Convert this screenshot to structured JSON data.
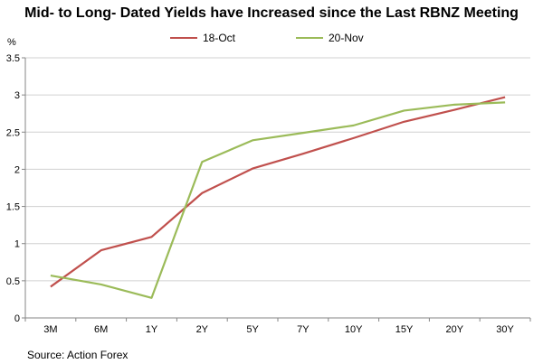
{
  "colors": {
    "oct": "#c0504d",
    "nov": "#9bbb59",
    "axis": "#868686",
    "grid": "#d0d0d0"
  },
  "chart_data": {
    "type": "line",
    "title": "Mid- to Long- Dated Yields have Increased since the Last RBNZ Meeting",
    "ylabel": "%",
    "xlabel": "",
    "categories": [
      "3M",
      "6M",
      "1Y",
      "2Y",
      "5Y",
      "7Y",
      "10Y",
      "15Y",
      "20Y",
      "30Y"
    ],
    "ylim": [
      0,
      3.5
    ],
    "yticks": [
      "0",
      "0.5",
      "1",
      "1.5",
      "2",
      "2.5",
      "3",
      "3.5"
    ],
    "legend_position": "top",
    "series": [
      {
        "name": "18-Oct",
        "color_key": "oct",
        "values": [
          0.42,
          0.91,
          1.09,
          1.68,
          2.01,
          2.21,
          2.42,
          2.64,
          2.8,
          2.97
        ]
      },
      {
        "name": "20-Nov",
        "color_key": "nov",
        "values": [
          0.57,
          0.45,
          0.27,
          2.1,
          2.39,
          2.49,
          2.59,
          2.79,
          2.87,
          2.9
        ]
      }
    ]
  },
  "source": "Source: Action Forex"
}
